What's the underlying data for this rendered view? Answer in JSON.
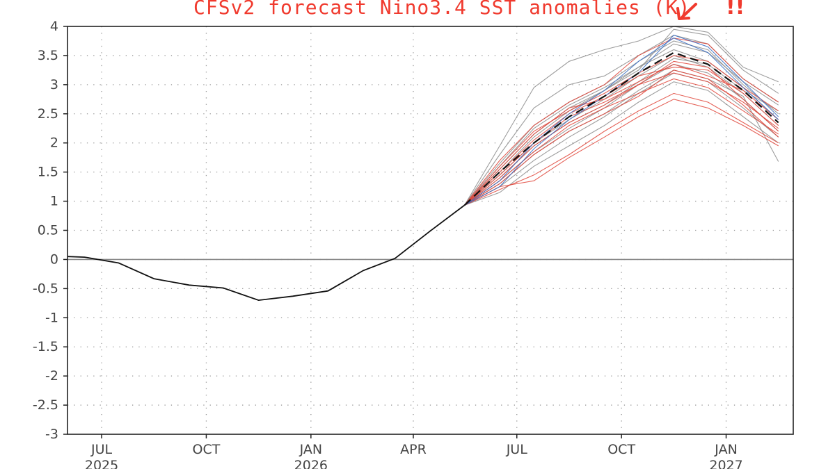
{
  "chart_data": {
    "type": "line",
    "title": "CFSv2 forecast Nino3.4 SST anomalies (K)",
    "annotation_text": "!!",
    "xlabel": "",
    "ylabel": "",
    "ylim": [
      -3,
      4
    ],
    "y_ticks": [
      "4",
      "3.5",
      "3",
      "2.5",
      "2",
      "1.5",
      "1",
      "0.5",
      "0",
      "-0.5",
      "-1",
      "-1.5",
      "-2",
      "-2.5",
      "-3"
    ],
    "y_tick_values": [
      4,
      3.5,
      3,
      2.5,
      2,
      1.5,
      1,
      0.5,
      0,
      -0.5,
      -1,
      -1.5,
      -2,
      -2.5,
      -3
    ],
    "x_range": [
      "2025-06-01",
      "2027-03-01"
    ],
    "x_ticks": [
      {
        "month": "JUL",
        "year": "2025",
        "date": "2025-07-01"
      },
      {
        "month": "OCT",
        "year": "",
        "date": "2025-10-01"
      },
      {
        "month": "JAN",
        "year": "2026",
        "date": "2026-01-01"
      },
      {
        "month": "APR",
        "year": "",
        "date": "2026-04-01"
      },
      {
        "month": "JUL",
        "year": "",
        "date": "2026-07-01"
      },
      {
        "month": "OCT",
        "year": "",
        "date": "2026-10-01"
      },
      {
        "month": "JAN",
        "year": "2027",
        "date": "2027-01-01"
      }
    ],
    "grid": true,
    "colors": {
      "observed": "#111111",
      "ensemble_mean": "#111111",
      "members_gray": "#8c8c8c",
      "members_red": "#e0453a",
      "members_blue": "#3a6fc4",
      "zero_line": "#888888",
      "title": "#f03a2e"
    },
    "observed": {
      "x": [
        "2025-06-01",
        "2025-06-16",
        "2025-07-16",
        "2025-08-16",
        "2025-09-16",
        "2025-10-16",
        "2025-11-16",
        "2025-12-16",
        "2026-01-16",
        "2026-02-16",
        "2026-03-16",
        "2026-04-16",
        "2026-05-16"
      ],
      "y": [
        0.05,
        0.04,
        -0.06,
        -0.33,
        -0.44,
        -0.49,
        -0.7,
        -0.63,
        -0.54,
        -0.19,
        0.02,
        0.49,
        0.93
      ]
    },
    "ensemble_mean": {
      "x": [
        "2026-05-16",
        "2026-06-16",
        "2026-07-16",
        "2026-08-16",
        "2026-09-16",
        "2026-10-16",
        "2026-11-16",
        "2026-12-16",
        "2027-01-16",
        "2027-02-16"
      ],
      "y": [
        0.93,
        1.5,
        2.0,
        2.45,
        2.8,
        3.2,
        3.55,
        3.35,
        2.9,
        2.35
      ]
    },
    "members": {
      "x": [
        "2026-05-16",
        "2026-06-16",
        "2026-07-16",
        "2026-08-16",
        "2026-09-16",
        "2026-10-16",
        "2026-11-16",
        "2026-12-16",
        "2027-01-16",
        "2027-02-16"
      ],
      "series": [
        {
          "color": "gray",
          "y": [
            0.93,
            1.95,
            2.95,
            3.4,
            3.6,
            3.75,
            4.0,
            3.9,
            3.3,
            3.05
          ]
        },
        {
          "color": "gray",
          "y": [
            0.93,
            1.8,
            2.6,
            3.0,
            3.15,
            3.5,
            3.85,
            3.7,
            3.1,
            2.7
          ]
        },
        {
          "color": "gray",
          "y": [
            0.93,
            1.65,
            2.3,
            2.7,
            3.0,
            3.4,
            3.75,
            3.6,
            3.0,
            2.5
          ]
        },
        {
          "color": "gray",
          "y": [
            0.93,
            1.55,
            2.15,
            2.6,
            2.9,
            3.3,
            3.6,
            3.4,
            2.95,
            2.4
          ]
        },
        {
          "color": "gray",
          "y": [
            0.93,
            1.45,
            2.0,
            2.4,
            2.75,
            3.15,
            3.5,
            3.3,
            2.85,
            2.3
          ]
        },
        {
          "color": "gray",
          "y": [
            0.93,
            1.35,
            1.85,
            2.25,
            2.6,
            3.0,
            3.35,
            3.2,
            2.75,
            2.2
          ]
        },
        {
          "color": "gray",
          "y": [
            0.93,
            1.25,
            1.7,
            2.1,
            2.45,
            2.85,
            3.2,
            3.05,
            2.6,
            2.1
          ]
        },
        {
          "color": "gray",
          "y": [
            0.93,
            1.15,
            1.6,
            1.95,
            2.3,
            2.7,
            3.05,
            2.9,
            2.45,
            2.0
          ]
        },
        {
          "color": "gray",
          "y": [
            0.93,
            1.5,
            2.1,
            2.55,
            2.9,
            3.25,
            3.95,
            3.85,
            3.25,
            2.85
          ]
        },
        {
          "color": "gray",
          "y": [
            0.93,
            1.4,
            1.95,
            2.35,
            2.65,
            3.05,
            3.45,
            3.35,
            2.9,
            2.55
          ]
        },
        {
          "color": "gray",
          "y": [
            0.93,
            1.3,
            1.8,
            2.2,
            2.5,
            2.9,
            3.25,
            3.1,
            2.8,
            1.68
          ]
        },
        {
          "color": "gray",
          "y": [
            0.93,
            1.6,
            2.25,
            2.65,
            2.95,
            3.3,
            3.7,
            3.55,
            3.05,
            2.65
          ]
        },
        {
          "color": "red",
          "y": [
            0.93,
            1.35,
            1.85,
            2.3,
            2.6,
            2.85,
            3.1,
            2.95,
            2.55,
            2.15
          ]
        },
        {
          "color": "red",
          "y": [
            0.93,
            1.2,
            1.45,
            1.8,
            2.2,
            2.55,
            2.85,
            2.7,
            2.35,
            2.0
          ]
        },
        {
          "color": "red",
          "y": [
            0.93,
            1.5,
            2.05,
            2.5,
            2.8,
            3.15,
            3.3,
            3.25,
            2.85,
            2.3
          ]
        },
        {
          "color": "red",
          "y": [
            0.93,
            1.7,
            2.3,
            2.7,
            3.0,
            3.5,
            3.8,
            3.7,
            3.1,
            2.7
          ]
        },
        {
          "color": "red",
          "y": [
            0.93,
            1.45,
            2.0,
            2.45,
            2.7,
            3.0,
            3.4,
            3.3,
            2.75,
            2.2
          ]
        },
        {
          "color": "red",
          "y": [
            0.93,
            1.3,
            1.8,
            2.2,
            2.5,
            2.8,
            3.25,
            3.1,
            2.65,
            2.1
          ]
        },
        {
          "color": "red",
          "y": [
            0.93,
            1.6,
            2.2,
            2.55,
            2.85,
            3.2,
            3.5,
            3.4,
            2.95,
            2.55
          ]
        },
        {
          "color": "red",
          "y": [
            0.93,
            1.55,
            2.15,
            2.6,
            2.75,
            3.05,
            3.35,
            3.15,
            2.9,
            2.4
          ]
        },
        {
          "color": "red",
          "y": [
            0.93,
            1.25,
            1.35,
            1.75,
            2.1,
            2.45,
            2.75,
            2.6,
            2.3,
            1.95
          ]
        },
        {
          "color": "red",
          "y": [
            0.93,
            1.4,
            1.95,
            2.35,
            2.65,
            3.0,
            3.2,
            3.05,
            2.7,
            2.25
          ]
        },
        {
          "color": "blue",
          "y": [
            0.93,
            1.25,
            1.9,
            2.4,
            2.8,
            3.2,
            3.85,
            3.65,
            3.05,
            2.45
          ]
        },
        {
          "color": "blue",
          "y": [
            0.93,
            1.35,
            2.0,
            2.5,
            2.9,
            3.4,
            3.8,
            3.55,
            2.95,
            2.4
          ]
        }
      ]
    }
  }
}
